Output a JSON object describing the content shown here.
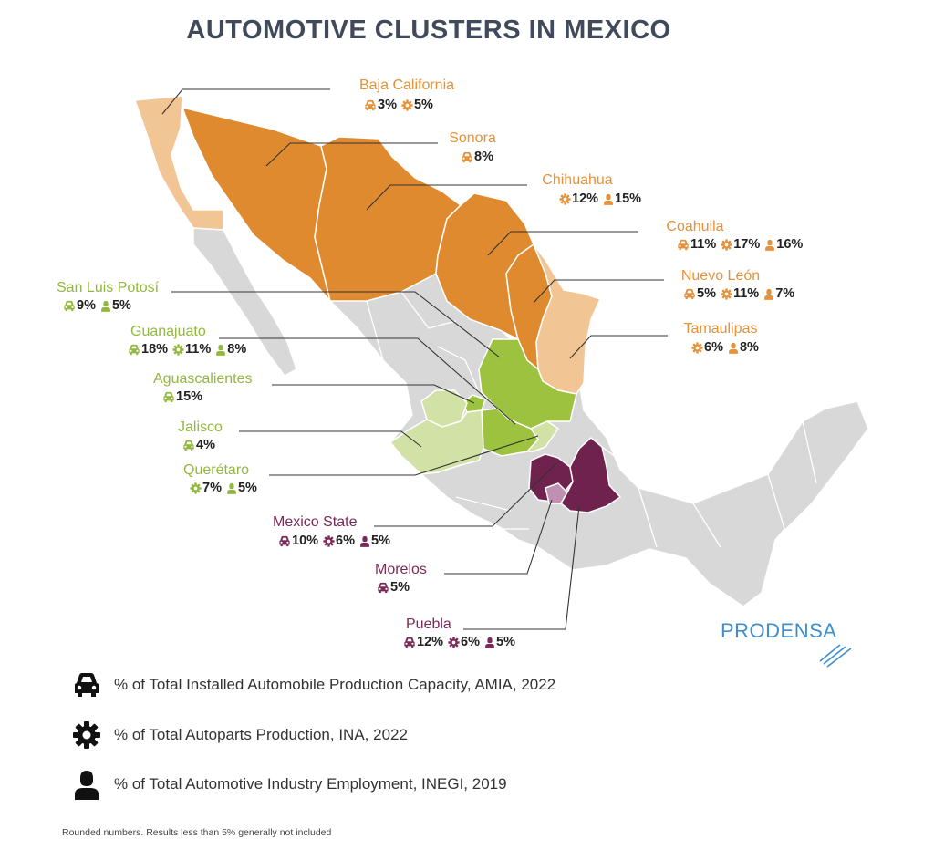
{
  "title": "AUTOMOTIVE CLUSTERS IN MEXICO",
  "colors": {
    "orange": "#e08a30",
    "orange_light": "#f2c594",
    "green": "#9cc23f",
    "green_light": "#d2e2a6",
    "purple": "#70224f",
    "purple_light": "#c090b2",
    "gray": "#d8d8d8",
    "label_orange": "#e5923a",
    "label_green": "#93b840",
    "label_purple": "#7a2a59",
    "logo": "#3d8fd0"
  },
  "states": {
    "baja_california": {
      "name": "Baja California",
      "stats": [
        {
          "icon": "car-icon",
          "value": "3%"
        },
        {
          "icon": "gear-icon",
          "value": "5%"
        }
      ]
    },
    "sonora": {
      "name": "Sonora",
      "stats": [
        {
          "icon": "car-icon",
          "value": "8%"
        }
      ]
    },
    "chihuahua": {
      "name": "Chihuahua",
      "stats": [
        {
          "icon": "gear-icon",
          "value": "12%"
        },
        {
          "icon": "person-icon",
          "value": "15%"
        }
      ]
    },
    "coahuila": {
      "name": "Coahuila",
      "stats": [
        {
          "icon": "car-icon",
          "value": "11%"
        },
        {
          "icon": "gear-icon",
          "value": "17%"
        },
        {
          "icon": "person-icon",
          "value": "16%"
        }
      ]
    },
    "nuevo_leon": {
      "name": "Nuevo León",
      "stats": [
        {
          "icon": "car-icon",
          "value": "5%"
        },
        {
          "icon": "gear-icon",
          "value": "11%"
        },
        {
          "icon": "person-icon",
          "value": "7%"
        }
      ]
    },
    "tamaulipas": {
      "name": "Tamaulipas",
      "stats": [
        {
          "icon": "gear-icon",
          "value": "6%"
        },
        {
          "icon": "person-icon",
          "value": "8%"
        }
      ]
    },
    "san_luis_potosi": {
      "name": "San Luis Potosí",
      "stats": [
        {
          "icon": "car-icon",
          "value": "9%"
        },
        {
          "icon": "person-icon",
          "value": "5%"
        }
      ]
    },
    "guanajuato": {
      "name": "Guanajuato",
      "stats": [
        {
          "icon": "car-icon",
          "value": "18%"
        },
        {
          "icon": "gear-icon",
          "value": "11%"
        },
        {
          "icon": "person-icon",
          "value": "8%"
        }
      ]
    },
    "aguascalientes": {
      "name": "Aguascalientes",
      "stats": [
        {
          "icon": "car-icon",
          "value": "15%"
        }
      ]
    },
    "jalisco": {
      "name": "Jalisco",
      "stats": [
        {
          "icon": "car-icon",
          "value": "4%"
        }
      ]
    },
    "queretaro": {
      "name": "Querétaro",
      "stats": [
        {
          "icon": "gear-icon",
          "value": "7%"
        },
        {
          "icon": "person-icon",
          "value": "5%"
        }
      ]
    },
    "mexico_state": {
      "name": "Mexico State",
      "stats": [
        {
          "icon": "car-icon",
          "value": "10%"
        },
        {
          "icon": "gear-icon",
          "value": "6%"
        },
        {
          "icon": "person-icon",
          "value": "5%"
        }
      ]
    },
    "morelos": {
      "name": "Morelos",
      "stats": [
        {
          "icon": "car-icon",
          "value": "5%"
        }
      ]
    },
    "puebla": {
      "name": "Puebla",
      "stats": [
        {
          "icon": "car-icon",
          "value": "12%"
        },
        {
          "icon": "gear-icon",
          "value": "6%"
        },
        {
          "icon": "person-icon",
          "value": "5%"
        }
      ]
    }
  },
  "legend": [
    {
      "icon": "car-icon",
      "text": "% of Total Installed Automobile Production Capacity, AMIA, 2022"
    },
    {
      "icon": "gear-icon",
      "text": "% of Total Autoparts Production, INA, 2022"
    },
    {
      "icon": "person-icon",
      "text": "% of Total Automotive Industry Employment, INEGI, 2019"
    }
  ],
  "footnote": "Rounded numbers. Results less than 5% generally not included",
  "logo": "PRODENSA"
}
